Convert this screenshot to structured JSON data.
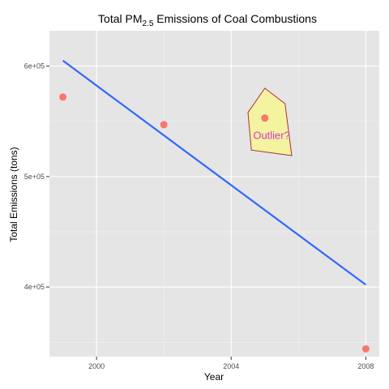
{
  "chart_data": {
    "type": "scatter",
    "title": "Total PM",
    "title_subscript": "2.5",
    "title_suffix": " Emissions of Coal Combustions",
    "xlabel": "Year",
    "ylabel": "Total Emissions (tons)",
    "xlim": [
      1998.6,
      2008.4
    ],
    "ylim": [
      337000,
      632000
    ],
    "x_ticks": [
      2000,
      2004,
      2008
    ],
    "x_tick_labels": [
      "2000",
      "2004",
      "2008"
    ],
    "y_ticks": [
      400000,
      500000,
      600000
    ],
    "y_tick_labels": [
      "4e+05",
      "5e+05",
      "6e+05"
    ],
    "grid": true,
    "background_color": "#e5e5e5",
    "grid_color": "#ffffff",
    "points": {
      "color": "#f8766d",
      "x": [
        1999,
        2002,
        2005,
        2008
      ],
      "y": [
        572000,
        547000,
        553000,
        344000
      ]
    },
    "trend_line": {
      "color": "#3366ff",
      "x": [
        1999,
        2008
      ],
      "y": [
        605000,
        402000
      ]
    },
    "annotation": {
      "text": "Outlier?",
      "text_color": "#dd33cc",
      "fill_color": "#f3f3a0",
      "border_color": "#aa3333",
      "x": 2005.2,
      "y": 534000,
      "polygon": [
        [
          2005,
          580000
        ],
        [
          2005.6,
          566000
        ],
        [
          2005.8,
          519000
        ],
        [
          2004.6,
          524000
        ],
        [
          2004.5,
          558000
        ]
      ]
    }
  }
}
